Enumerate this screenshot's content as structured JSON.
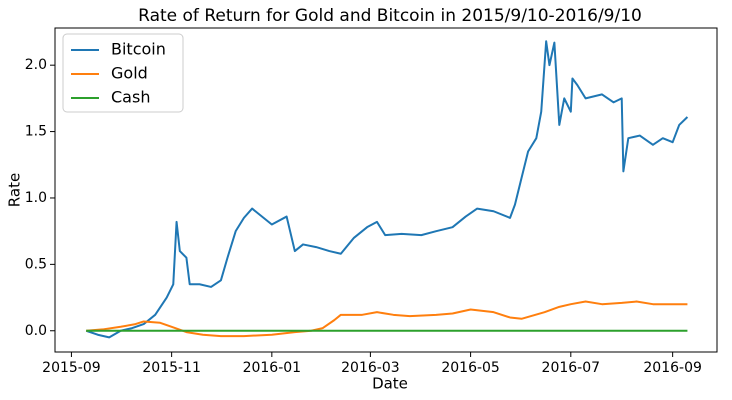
{
  "chart_data": {
    "type": "line",
    "title": "Rate of Return for Gold and Bitcoin in 2015/9/10-2016/9/10",
    "x_label": "Date",
    "y_label": "Rate",
    "xlim": [
      "2015-08-22",
      "2016-09-28"
    ],
    "ylim": [
      -0.16,
      2.28
    ],
    "xticks": [
      {
        "value": "2015-09-01",
        "label": "2015-09"
      },
      {
        "value": "2015-11-01",
        "label": "2015-11"
      },
      {
        "value": "2016-01-01",
        "label": "2016-01"
      },
      {
        "value": "2016-03-01",
        "label": "2016-03"
      },
      {
        "value": "2016-05-01",
        "label": "2016-05"
      },
      {
        "value": "2016-07-01",
        "label": "2016-07"
      },
      {
        "value": "2016-09-01",
        "label": "2016-09"
      }
    ],
    "yticks": [
      {
        "value": 0,
        "label": "0.0"
      },
      {
        "value": 0.5,
        "label": "0.5"
      },
      {
        "value": 1,
        "label": "1.0"
      },
      {
        "value": 1.5,
        "label": "1.5"
      },
      {
        "value": 2,
        "label": "2.0"
      }
    ],
    "legend": "upper left",
    "series": [
      {
        "name": "Bitcoin",
        "color": "#1f77b4",
        "x": [
          "2015-09-10",
          "2015-09-17",
          "2015-09-24",
          "2015-10-01",
          "2015-10-08",
          "2015-10-15",
          "2015-10-22",
          "2015-10-29",
          "2015-11-02",
          "2015-11-04",
          "2015-11-06",
          "2015-11-10",
          "2015-11-12",
          "2015-11-18",
          "2015-11-25",
          "2015-12-01",
          "2015-12-05",
          "2015-12-10",
          "2015-12-15",
          "2015-12-20",
          "2016-01-01",
          "2016-01-10",
          "2016-01-15",
          "2016-01-20",
          "2016-01-28",
          "2016-02-05",
          "2016-02-12",
          "2016-02-20",
          "2016-02-28",
          "2016-03-05",
          "2016-03-10",
          "2016-03-20",
          "2016-04-01",
          "2016-04-10",
          "2016-04-20",
          "2016-04-28",
          "2016-05-05",
          "2016-05-15",
          "2016-05-25",
          "2016-05-28",
          "2016-06-01",
          "2016-06-05",
          "2016-06-10",
          "2016-06-13",
          "2016-06-16",
          "2016-06-18",
          "2016-06-21",
          "2016-06-24",
          "2016-06-27",
          "2016-07-01",
          "2016-07-02",
          "2016-07-05",
          "2016-07-10",
          "2016-07-20",
          "2016-07-27",
          "2016-08-01",
          "2016-08-02",
          "2016-08-05",
          "2016-08-12",
          "2016-08-20",
          "2016-08-26",
          "2016-09-01",
          "2016-09-05",
          "2016-09-10"
        ],
        "values": [
          0.0,
          -0.03,
          -0.05,
          0.0,
          0.02,
          0.05,
          0.12,
          0.25,
          0.35,
          0.82,
          0.6,
          0.55,
          0.35,
          0.35,
          0.33,
          0.38,
          0.55,
          0.75,
          0.85,
          0.92,
          0.8,
          0.86,
          0.6,
          0.65,
          0.63,
          0.6,
          0.58,
          0.7,
          0.78,
          0.82,
          0.72,
          0.73,
          0.72,
          0.75,
          0.78,
          0.86,
          0.92,
          0.9,
          0.85,
          0.95,
          1.15,
          1.35,
          1.45,
          1.65,
          2.18,
          2.0,
          2.17,
          1.55,
          1.75,
          1.65,
          1.9,
          1.85,
          1.75,
          1.78,
          1.72,
          1.75,
          1.2,
          1.45,
          1.47,
          1.4,
          1.45,
          1.42,
          1.55,
          1.61
        ]
      },
      {
        "name": "Gold",
        "color": "#ff7f0e",
        "x": [
          "2015-09-10",
          "2015-09-20",
          "2015-10-01",
          "2015-10-10",
          "2015-10-15",
          "2015-10-25",
          "2015-11-01",
          "2015-11-10",
          "2015-11-20",
          "2015-12-01",
          "2015-12-15",
          "2016-01-01",
          "2016-01-15",
          "2016-01-25",
          "2016-02-01",
          "2016-02-08",
          "2016-02-12",
          "2016-02-25",
          "2016-03-05",
          "2016-03-15",
          "2016-03-25",
          "2016-04-10",
          "2016-04-20",
          "2016-05-01",
          "2016-05-15",
          "2016-05-25",
          "2016-06-01",
          "2016-06-15",
          "2016-06-24",
          "2016-07-01",
          "2016-07-10",
          "2016-07-20",
          "2016-08-01",
          "2016-08-10",
          "2016-08-20",
          "2016-09-01",
          "2016-09-10"
        ],
        "values": [
          0.0,
          0.01,
          0.03,
          0.05,
          0.07,
          0.06,
          0.03,
          -0.01,
          -0.03,
          -0.04,
          -0.04,
          -0.03,
          -0.01,
          0.0,
          0.02,
          0.08,
          0.12,
          0.12,
          0.14,
          0.12,
          0.11,
          0.12,
          0.13,
          0.16,
          0.14,
          0.1,
          0.09,
          0.14,
          0.18,
          0.2,
          0.22,
          0.2,
          0.21,
          0.22,
          0.2,
          0.2,
          0.2
        ]
      },
      {
        "name": "Cash",
        "color": "#2ca02c",
        "x": [
          "2015-09-10",
          "2016-09-10"
        ],
        "values": [
          0,
          0
        ]
      }
    ]
  }
}
